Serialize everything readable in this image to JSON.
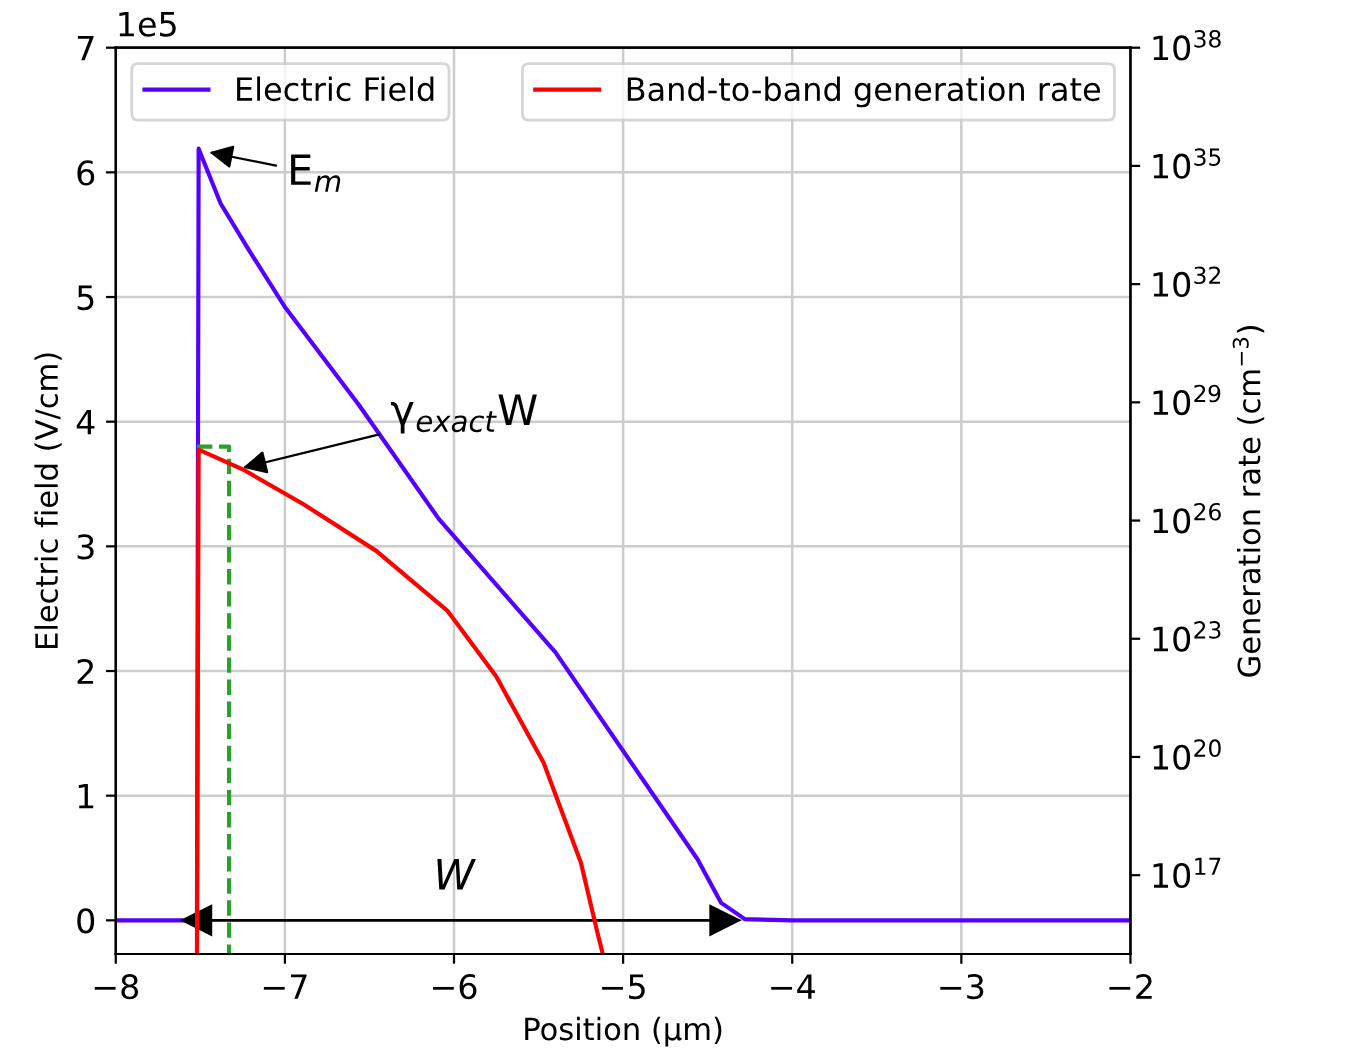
{
  "chart_data": {
    "type": "line",
    "xlabel": "Position (μm)",
    "ylabel": "Electric field (V/cm)",
    "y2label": "Generation rate (cm$^{−3}$)",
    "xlim": [
      -8,
      -2
    ],
    "xticks": [
      {
        "value": -8,
        "label": "−8"
      },
      {
        "value": -7,
        "label": "−7"
      },
      {
        "value": -6,
        "label": "−6"
      },
      {
        "value": -5,
        "label": "−5"
      },
      {
        "value": -4,
        "label": "−4"
      },
      {
        "value": -3,
        "label": "−3"
      },
      {
        "value": -2,
        "label": "−2"
      }
    ],
    "ylim": [
      -0.27,
      7
    ],
    "yticks": [
      0,
      1,
      2,
      3,
      4,
      5,
      6,
      7
    ],
    "log": "y2",
    "y2lim": [
      1000000000000000.0,
      1e+38
    ],
    "y2ticks": [
      {
        "value": 1e+17,
        "label": "10$^{17}$"
      },
      {
        "value": 1e+20,
        "label": "10$^{20}$"
      },
      {
        "value": 1e+23,
        "label": "10$^{23}$"
      },
      {
        "value": 1e+26,
        "label": "10$^{26}$"
      },
      {
        "value": 1e+29,
        "label": "10$^{29}$"
      },
      {
        "value": 1e+32,
        "label": "10$^{32}$"
      },
      {
        "value": 1e+35,
        "label": "10$^{35}$"
      },
      {
        "value": 1e+38,
        "label": "10$^{38}$"
      }
    ],
    "grid": true,
    "legend": "top",
    "series": [
      {
        "name": "Electric Field",
        "color": "#5500ff",
        "x": [
          -8,
          -7.52,
          -7.51,
          -7.38,
          -7.21,
          -7.0,
          -6.56,
          -6.09,
          -5.4,
          -4.56,
          -4.42,
          -4.28,
          -4.0,
          -2
        ],
        "values": [
          0,
          0,
          6.19,
          5.75,
          5.37,
          4.92,
          4.13,
          3.22,
          2.15,
          0.49,
          0.14,
          0.01,
          0,
          0
        ]
      },
      {
        "name": "Band-to-band generation rate",
        "color": "#ff0000",
        "axis": "y2",
        "x": [
          -7.52,
          -7.51,
          -7.25,
          -6.89,
          -6.46,
          -6.04,
          -5.75,
          -5.47,
          -5.25,
          -5.15,
          -5.12
        ],
        "values": [
          1000000000000000.0,
          6.3e+27,
          2e+27,
          2.6e+26,
          1.7e+25,
          5.2e+23,
          1.1e+22,
          7.1e+19,
          2.1e+17,
          3200000000000000.0,
          1000000000000000.0
        ]
      },
      {
        "color": "#2ca02c",
        "line_style": "dashed",
        "x": [
          -7.52,
          -7.33,
          -7.33
        ],
        "values": [
          3.8,
          3.8,
          -0.27
        ]
      },
      {
        "color": "#000000",
        "marker": "triangle",
        "x": [
          -7.52,
          -4.4
        ],
        "values": [
          0,
          0
        ]
      }
    ],
    "annotations": [
      "1e5",
      {
        "text": "E$_{m}$",
        "x": -7.48,
        "y": 6.17
      },
      {
        "text": "γ$_{exact}$W",
        "x": -7.28,
        "y": 3.62
      },
      {
        "text": "W",
        "x": -6.0,
        "y": 0
      }
    ]
  }
}
